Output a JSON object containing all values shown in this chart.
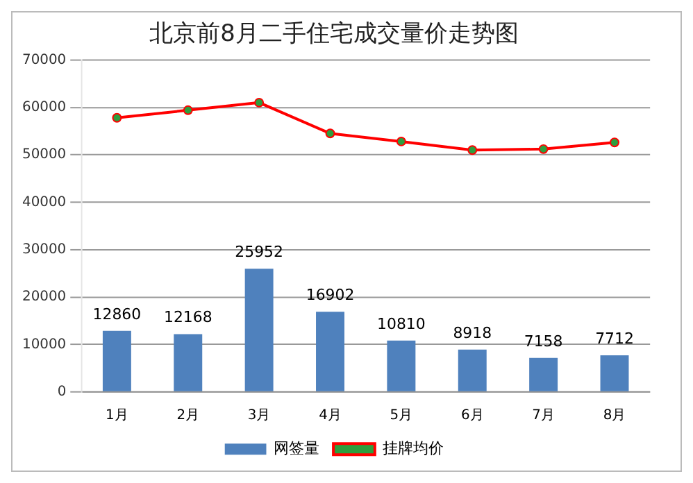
{
  "chart_data": {
    "type": "bar",
    "title": "北京前8月二手住宅成交量价走势图",
    "categories": [
      "1月",
      "2月",
      "3月",
      "4月",
      "5月",
      "6月",
      "7月",
      "8月"
    ],
    "series": [
      {
        "name": "网签量",
        "color": "#4f81bd",
        "values": [
          12860,
          12168,
          25952,
          16902,
          10810,
          8918,
          7158,
          7712
        ],
        "value_labels": [
          "12860",
          "12168",
          "25952",
          "16902",
          "10810",
          "8918",
          "7158",
          "7712"
        ]
      },
      {
        "name": "挂牌均价",
        "type": "line",
        "color": "#ff0000",
        "marker": "circle",
        "values": [
          57800,
          59400,
          61000,
          54500,
          52800,
          51000,
          51200,
          52600
        ]
      }
    ],
    "ylim": [
      0,
      70000
    ],
    "yticks": [
      0,
      10000,
      20000,
      30000,
      40000,
      50000,
      60000,
      70000
    ],
    "grid": "y",
    "legend": "bottom"
  }
}
